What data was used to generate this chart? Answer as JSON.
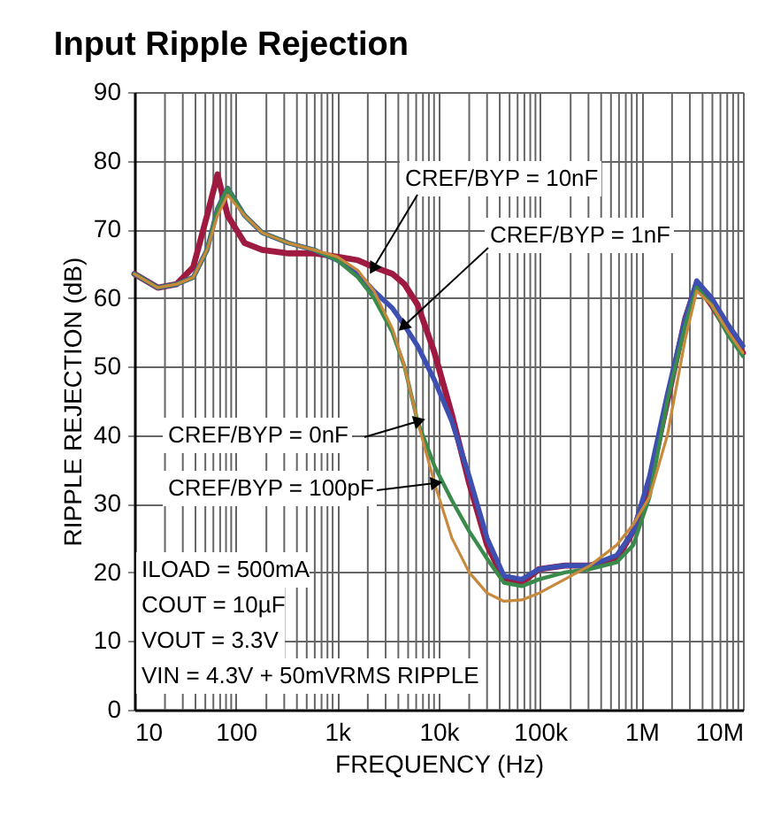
{
  "chart_data": {
    "type": "line",
    "title": "Input Ripple Rejection",
    "xlabel": "FREQUENCY (Hz)",
    "ylabel": "RIPPLE REJECTION (dB)",
    "log": "x",
    "grid": true,
    "legend": "left",
    "line_style": "solid",
    "xlim": [
      10,
      10000000
    ],
    "ylim": [
      0,
      90
    ],
    "xticks": [
      10,
      100,
      {
        "value": 1000,
        "label": "1k"
      },
      {
        "value": 10000,
        "label": "10k"
      },
      {
        "value": 100000,
        "label": "100k"
      },
      {
        "value": 1000000,
        "label": "1M"
      },
      {
        "value": 10000000,
        "label": "10M"
      }
    ],
    "yticks": [
      0,
      10,
      20,
      30,
      40,
      50,
      60,
      70,
      80,
      90
    ],
    "x": [
      10,
      17,
      26,
      38,
      52,
      66,
      83,
      122,
      182,
      330,
      590,
      1000,
      1600,
      2300,
      3500,
      4600,
      6200,
      9100,
      13500,
      20000,
      30000,
      44000,
      66000,
      98000,
      175000,
      310000,
      570000,
      830000,
      1200000,
      1800000,
      2700000,
      3500000,
      4900000,
      7200000,
      10000000
    ],
    "series": [
      {
        "name": "CREF/BYP = 10nF",
        "color": "#9e1a40",
        "values": [
          63.5,
          61.5,
          62,
          64.5,
          72,
          78,
          72,
          68,
          67,
          66.5,
          66.5,
          66,
          65.5,
          64.5,
          63.5,
          62,
          59,
          52,
          43,
          33,
          24,
          19,
          18.5,
          20.5,
          21,
          21,
          22,
          26,
          33,
          45,
          57,
          62,
          59,
          55,
          52
        ]
      },
      {
        "name": "CREF/BYP = 1nF",
        "color": "#3d4fb0",
        "values": [
          63.5,
          61.5,
          62,
          63,
          67,
          73,
          76,
          72,
          69.5,
          68,
          67,
          65.5,
          63.5,
          61,
          58.5,
          56,
          53,
          48,
          42,
          34,
          25,
          19.5,
          19,
          20.5,
          21,
          21,
          22.5,
          26,
          34,
          46,
          57,
          62.5,
          60,
          56,
          53
        ]
      },
      {
        "name": "CREF/BYP = 0nF",
        "color": "#3a8a4c",
        "values": [
          63.5,
          61.5,
          62,
          63,
          67,
          73,
          76,
          72,
          69.5,
          68,
          67,
          65.5,
          63,
          60,
          55,
          50,
          42,
          35.5,
          30.5,
          26,
          22,
          18.5,
          18,
          19,
          20,
          20.5,
          21.5,
          24,
          31,
          45,
          56,
          61.5,
          59,
          54.5,
          51.5
        ]
      },
      {
        "name": "CREF/BYP = 100pF",
        "color": "#c8893c",
        "values": [
          63.5,
          61.5,
          62,
          63,
          67,
          72,
          75,
          72,
          69.5,
          68,
          67,
          66,
          64,
          61,
          55.5,
          50,
          42,
          33,
          25,
          20,
          17,
          15.8,
          16,
          17,
          19,
          21,
          24,
          27,
          31,
          40,
          54,
          61,
          59,
          55,
          52
        ]
      }
    ],
    "annotations": [
      "ILOAD = 500mA",
      "COUT = 10µF",
      "VOUT = 3.3V",
      "VIN = 4.3V + 50mVRMS RIPPLE"
    ]
  }
}
